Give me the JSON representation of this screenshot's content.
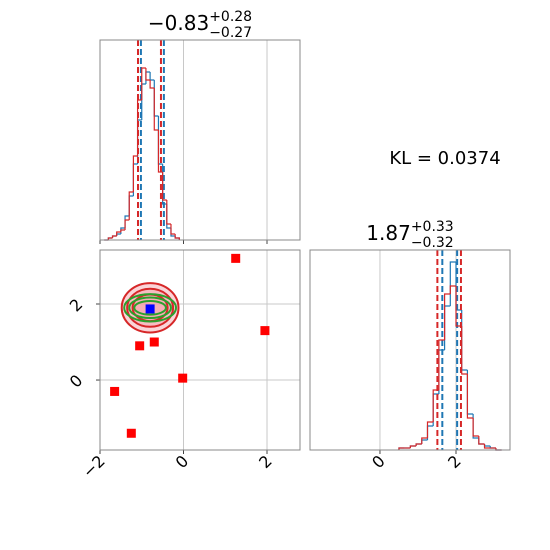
{
  "chart_data": [
    {
      "type": "histogram",
      "title_value": "−0.83",
      "title_upper": "+0.28",
      "title_lower": "−0.27",
      "bins": [
        -1.9,
        -1.8,
        -1.7,
        -1.6,
        -1.5,
        -1.4,
        -1.3,
        -1.2,
        -1.1,
        -1.0,
        -0.9,
        -0.8,
        -0.7,
        -0.6,
        -0.5,
        -0.4,
        -0.3,
        -0.2,
        -0.1
      ],
      "series": [
        {
          "color": "#1f77b4",
          "values": [
            0,
            1,
            2,
            3,
            6,
            12,
            22,
            38,
            60,
            78,
            84,
            80,
            62,
            38,
            18,
            6,
            2,
            1
          ],
          "quantiles": [
            -1.02,
            -0.47
          ]
        },
        {
          "color": "#d62728",
          "values": [
            0,
            1,
            2,
            4,
            5,
            10,
            24,
            42,
            70,
            86,
            80,
            76,
            55,
            34,
            20,
            8,
            3,
            1
          ],
          "quantiles": [
            -1.09,
            -0.54
          ]
        }
      ],
      "xlim": [
        -2,
        2.79
      ],
      "ylim": [
        0,
        100
      ],
      "xticks": [
        -2,
        0,
        2
      ],
      "xticklabels": false,
      "grid": true
    },
    {
      "type": "corner2d",
      "contours": [
        {
          "color": "#d62728",
          "fill": "#f4a0a8",
          "cx": -0.8,
          "cy": 1.9,
          "rx": [
            0.68,
            0.55,
            0.42
          ],
          "ry": [
            0.65,
            0.5,
            0.35
          ]
        },
        {
          "color": "#2ca02c",
          "cx": -0.8,
          "cy": 1.9,
          "rx": [
            0.62,
            0.5,
            0.38
          ],
          "ry": [
            0.36,
            0.27,
            0.18
          ]
        }
      ],
      "points": {
        "color": "#ff0000",
        "x": [
          1.25,
          1.95,
          -0.7,
          -1.05,
          -0.02,
          -1.65,
          -1.25
        ],
        "y": [
          3.2,
          1.3,
          1.0,
          0.9,
          0.05,
          -0.3,
          -1.4
        ]
      },
      "best": {
        "color": "#0000ff",
        "x": -0.8,
        "y": 1.87
      },
      "xlim": [
        -2,
        2.79
      ],
      "ylim": [
        -1.84,
        3.42
      ],
      "xticks": [
        {
          "value": -2,
          "label": "−2"
        },
        0,
        2
      ],
      "yticks": [
        0,
        2
      ],
      "grid": true
    },
    {
      "type": "histogram",
      "title_value": "1.87",
      "title_upper": "+0.33",
      "title_lower": "−0.32",
      "bins": [
        0.5,
        0.65,
        0.8,
        0.95,
        1.1,
        1.25,
        1.4,
        1.55,
        1.7,
        1.85,
        2.0,
        2.15,
        2.3,
        2.45,
        2.6,
        2.75,
        2.9,
        3.05,
        3.2
      ],
      "series": [
        {
          "color": "#1f77b4",
          "values": [
            1,
            1,
            2,
            3,
            5,
            12,
            28,
            50,
            72,
            94,
            70,
            40,
            18,
            6,
            3,
            2,
            1,
            0
          ],
          "quantiles": [
            1.64,
            2.03
          ]
        },
        {
          "color": "#d62728",
          "values": [
            1,
            1,
            2,
            3,
            6,
            14,
            30,
            55,
            78,
            82,
            62,
            38,
            16,
            7,
            3,
            1,
            1,
            0
          ],
          "quantiles": [
            1.51,
            2.13
          ]
        }
      ],
      "xlim": [
        -1.84,
        3.42
      ],
      "ylim": [
        0,
        100
      ],
      "xticks": [
        0,
        2
      ],
      "xticklabels": true,
      "grid": true
    },
    {
      "type": "annotation",
      "text": "KL = 0.0374"
    }
  ]
}
